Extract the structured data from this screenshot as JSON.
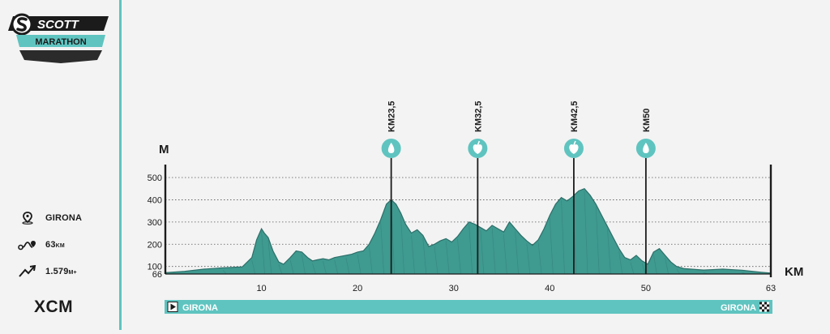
{
  "brand": {
    "logo_text": "SCOTT",
    "event_name": "MARATHON"
  },
  "stats": {
    "location": "GIRONA",
    "distance_value": "63",
    "distance_unit": "KM",
    "elevation_value": "1.579",
    "elevation_unit": "M+",
    "discipline": "XCM"
  },
  "colors": {
    "accent": "#5fc4c0",
    "terrain": "#3f9a90",
    "dark": "#1b1b1b",
    "background": "#f3f3f3"
  },
  "chart_data": {
    "type": "area",
    "xlabel": "KM",
    "ylabel": "M",
    "xlim": [
      0,
      63
    ],
    "ylim": [
      66,
      560
    ],
    "x_ticks": [
      10,
      20,
      30,
      40,
      50,
      63
    ],
    "y_ticks": [
      66,
      100,
      200,
      300,
      400,
      500
    ],
    "grid": true,
    "profile": {
      "x": [
        0,
        2,
        4,
        6,
        8,
        9,
        9.5,
        10,
        10.3,
        10.7,
        11.2,
        11.8,
        12.3,
        13,
        13.6,
        14.2,
        14.8,
        15.3,
        15.8,
        16.4,
        17,
        17.6,
        18.2,
        18.8,
        19.4,
        20,
        20.6,
        21.2,
        21.8,
        22.4,
        23,
        23.5,
        24,
        24.5,
        25,
        25.6,
        26.2,
        26.8,
        27.4,
        28,
        28.6,
        29.2,
        29.8,
        30.4,
        31,
        31.6,
        32.2,
        32.8,
        33.4,
        34,
        34.6,
        35.2,
        35.8,
        36.4,
        37,
        37.6,
        38.2,
        38.8,
        39.4,
        40,
        40.6,
        41.2,
        41.8,
        42.4,
        43,
        43.6,
        44.2,
        44.8,
        45.4,
        46,
        46.6,
        47.2,
        47.8,
        48.4,
        49,
        49.6,
        50.2,
        50.8,
        51.4,
        52,
        52.6,
        53.2,
        54,
        56,
        58,
        60,
        62,
        63
      ],
      "elevation": [
        72,
        78,
        88,
        94,
        98,
        140,
        220,
        270,
        250,
        230,
        170,
        120,
        110,
        140,
        170,
        165,
        140,
        125,
        130,
        135,
        130,
        140,
        145,
        150,
        155,
        165,
        170,
        200,
        250,
        310,
        380,
        400,
        380,
        340,
        290,
        250,
        265,
        240,
        190,
        200,
        215,
        225,
        210,
        235,
        270,
        300,
        290,
        275,
        260,
        285,
        270,
        255,
        300,
        270,
        240,
        215,
        195,
        220,
        270,
        330,
        380,
        410,
        395,
        415,
        440,
        450,
        420,
        380,
        330,
        280,
        230,
        180,
        140,
        130,
        150,
        125,
        110,
        165,
        180,
        150,
        120,
        100,
        90,
        84,
        88,
        83,
        74,
        70
      ]
    },
    "checkpoints": [
      {
        "label": "KM23,5",
        "km": 23.5,
        "icon": "water-drop-icon"
      },
      {
        "label": "KM32,5",
        "km": 32.5,
        "icon": "apple-icon"
      },
      {
        "label": "KM42,5",
        "km": 42.5,
        "icon": "apple-icon"
      },
      {
        "label": "KM50",
        "km": 50,
        "icon": "water-drop-icon"
      }
    ],
    "route_bar": {
      "start": "GIRONA",
      "finish": "GIRONA"
    }
  }
}
